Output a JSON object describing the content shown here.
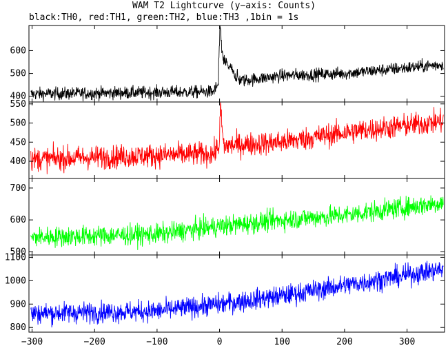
{
  "title": "WAM T2 Lightcurve (y−axis: Counts)",
  "subtitle": "black:TH0, red:TH1, green:TH2, blue:TH3 ,1bin = 1s",
  "chart_data": {
    "type": "line",
    "xlim": [
      -305,
      360
    ],
    "x_ticks": [
      -300,
      -200,
      -100,
      0,
      100,
      200,
      300
    ],
    "x_tick_labels": [
      "−300",
      "−200",
      "−100",
      "0",
      "100",
      "200",
      "300"
    ],
    "grid": false,
    "panels": [
      {
        "name": "TH0",
        "color": "#000000",
        "ylim": [
          375,
          710
        ],
        "y_ticks": [
          400,
          500,
          600
        ],
        "baseline": [
          [
            -305,
            410
          ],
          [
            -10,
            420
          ],
          [
            0,
            460
          ],
          [
            10,
            480
          ],
          [
            40,
            470
          ],
          [
            100,
            490
          ],
          [
            200,
            500
          ],
          [
            360,
            540
          ]
        ],
        "noise": 20,
        "events": [
          {
            "from": -2,
            "to": 6,
            "values": [
              450,
              560,
              620,
              700,
              690,
              640,
              600,
              590,
              560
            ]
          },
          {
            "from": 6,
            "to": 30,
            "peak": 560,
            "decay_to": 480
          }
        ]
      },
      {
        "name": "TH1",
        "color": "#ff0000",
        "ylim": [
          355,
          555
        ],
        "y_ticks": [
          400,
          450,
          500,
          550
        ],
        "baseline": [
          [
            -305,
            405
          ],
          [
            -10,
            420
          ],
          [
            0,
            440
          ],
          [
            100,
            450
          ],
          [
            200,
            475
          ],
          [
            360,
            505
          ]
        ],
        "noise": 22,
        "events": [
          {
            "from": 0,
            "to": 6,
            "values": [
              460,
              510,
              545,
              520,
              490,
              470,
              455
            ]
          }
        ]
      },
      {
        "name": "TH2",
        "color": "#00ff00",
        "ylim": [
          490,
          730
        ],
        "y_ticks": [
          500,
          600,
          700
        ],
        "baseline": [
          [
            -305,
            545
          ],
          [
            -100,
            555
          ],
          [
            0,
            580
          ],
          [
            100,
            600
          ],
          [
            200,
            615
          ],
          [
            360,
            655
          ]
        ],
        "noise": 23,
        "events": []
      },
      {
        "name": "TH3",
        "color": "#0000ff",
        "ylim": [
          780,
          1110
        ],
        "y_ticks": [
          800,
          900,
          1000,
          1100
        ],
        "baseline": [
          [
            -305,
            860
          ],
          [
            -100,
            870
          ],
          [
            0,
            900
          ],
          [
            100,
            935
          ],
          [
            200,
            980
          ],
          [
            360,
            1050
          ]
        ],
        "noise": 32,
        "events": []
      }
    ]
  }
}
